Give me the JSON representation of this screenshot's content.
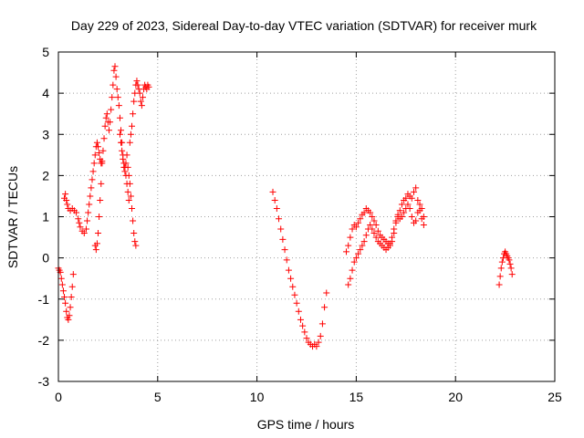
{
  "chart_data": {
    "type": "scatter",
    "title": "Day 229 of 2023, Sidereal Day-to-day VTEC variation (SDTVAR) for receiver murk",
    "xlabel": "GPS time / hours",
    "ylabel": "SDTVAR / TECUs",
    "xlim": [
      0,
      25
    ],
    "ylim": [
      -3,
      5
    ],
    "xticks": [
      0,
      5,
      10,
      15,
      20,
      25
    ],
    "yticks": [
      -3,
      -2,
      -1,
      0,
      1,
      2,
      3,
      4,
      5
    ],
    "grid": true,
    "marker": "+",
    "color": "#ff0000",
    "series": [
      {
        "name": "SDTVAR",
        "points": [
          [
            0.0,
            -0.25
          ],
          [
            0.05,
            -0.3
          ],
          [
            0.1,
            -0.35
          ],
          [
            0.15,
            -0.5
          ],
          [
            0.2,
            -0.65
          ],
          [
            0.25,
            -0.8
          ],
          [
            0.3,
            -0.95
          ],
          [
            0.35,
            -1.1
          ],
          [
            0.4,
            -1.3
          ],
          [
            0.45,
            -1.45
          ],
          [
            0.5,
            -1.5
          ],
          [
            0.55,
            -1.4
          ],
          [
            0.6,
            -1.2
          ],
          [
            0.65,
            -0.95
          ],
          [
            0.7,
            -0.7
          ],
          [
            0.75,
            -0.4
          ],
          [
            0.3,
            1.45
          ],
          [
            0.35,
            1.55
          ],
          [
            0.4,
            1.4
          ],
          [
            0.45,
            1.3
          ],
          [
            0.5,
            1.2
          ],
          [
            0.6,
            1.15
          ],
          [
            0.7,
            1.2
          ],
          [
            0.8,
            1.15
          ],
          [
            0.9,
            1.1
          ],
          [
            1.0,
            0.95
          ],
          [
            1.05,
            0.85
          ],
          [
            1.1,
            0.75
          ],
          [
            1.2,
            0.65
          ],
          [
            1.3,
            0.6
          ],
          [
            1.4,
            0.7
          ],
          [
            1.45,
            0.9
          ],
          [
            1.5,
            1.1
          ],
          [
            1.55,
            1.3
          ],
          [
            1.6,
            1.5
          ],
          [
            1.65,
            1.7
          ],
          [
            1.7,
            1.9
          ],
          [
            1.75,
            2.1
          ],
          [
            1.8,
            2.3
          ],
          [
            1.85,
            2.5
          ],
          [
            1.9,
            2.7
          ],
          [
            1.95,
            2.8
          ],
          [
            2.0,
            2.7
          ],
          [
            2.05,
            2.55
          ],
          [
            2.1,
            2.4
          ],
          [
            2.15,
            2.3
          ],
          [
            2.2,
            2.35
          ],
          [
            2.25,
            2.6
          ],
          [
            2.3,
            2.9
          ],
          [
            2.35,
            3.2
          ],
          [
            2.4,
            3.4
          ],
          [
            2.45,
            3.5
          ],
          [
            1.85,
            0.3
          ],
          [
            1.9,
            0.2
          ],
          [
            1.95,
            0.35
          ],
          [
            2.0,
            0.6
          ],
          [
            2.05,
            1.0
          ],
          [
            2.1,
            1.4
          ],
          [
            2.15,
            1.8
          ],
          [
            2.2,
            2.3
          ],
          [
            2.5,
            3.3
          ],
          [
            2.55,
            3.1
          ],
          [
            2.6,
            3.3
          ],
          [
            2.65,
            3.6
          ],
          [
            2.7,
            3.9
          ],
          [
            2.75,
            4.2
          ],
          [
            2.8,
            4.55
          ],
          [
            2.85,
            4.65
          ],
          [
            2.9,
            4.4
          ],
          [
            2.95,
            4.1
          ],
          [
            3.0,
            3.9
          ],
          [
            3.05,
            3.7
          ],
          [
            3.1,
            3.4
          ],
          [
            3.15,
            3.1
          ],
          [
            3.2,
            2.8
          ],
          [
            3.25,
            2.5
          ],
          [
            3.3,
            2.3
          ],
          [
            3.35,
            2.2
          ],
          [
            3.4,
            2.0
          ],
          [
            3.45,
            1.8
          ],
          [
            3.5,
            1.6
          ],
          [
            3.55,
            1.4
          ],
          [
            3.1,
            3.0
          ],
          [
            3.15,
            2.8
          ],
          [
            3.2,
            2.6
          ],
          [
            3.25,
            2.4
          ],
          [
            3.3,
            2.2
          ],
          [
            3.35,
            2.1
          ],
          [
            3.4,
            2.3
          ],
          [
            3.45,
            2.5
          ],
          [
            3.5,
            2.2
          ],
          [
            3.55,
            2.0
          ],
          [
            3.6,
            1.8
          ],
          [
            3.65,
            1.5
          ],
          [
            3.7,
            1.2
          ],
          [
            3.75,
            0.9
          ],
          [
            3.8,
            0.6
          ],
          [
            3.85,
            0.4
          ],
          [
            3.9,
            0.3
          ],
          [
            3.6,
            2.8
          ],
          [
            3.65,
            3.0
          ],
          [
            3.7,
            3.2
          ],
          [
            3.75,
            3.5
          ],
          [
            3.8,
            3.8
          ],
          [
            3.85,
            4.0
          ],
          [
            3.9,
            4.2
          ],
          [
            3.95,
            4.3
          ],
          [
            4.0,
            4.2
          ],
          [
            4.05,
            4.1
          ],
          [
            4.1,
            4.0
          ],
          [
            4.15,
            3.8
          ],
          [
            4.2,
            3.7
          ],
          [
            4.25,
            3.9
          ],
          [
            4.3,
            4.1
          ],
          [
            4.35,
            4.2
          ],
          [
            4.4,
            4.15
          ],
          [
            4.45,
            4.1
          ],
          [
            4.5,
            4.2
          ],
          [
            4.55,
            4.15
          ],
          [
            10.8,
            1.6
          ],
          [
            10.9,
            1.4
          ],
          [
            11.0,
            1.2
          ],
          [
            11.1,
            0.95
          ],
          [
            11.2,
            0.7
          ],
          [
            11.3,
            0.45
          ],
          [
            11.4,
            0.2
          ],
          [
            11.5,
            -0.05
          ],
          [
            11.6,
            -0.3
          ],
          [
            11.7,
            -0.5
          ],
          [
            11.8,
            -0.7
          ],
          [
            11.9,
            -0.9
          ],
          [
            12.0,
            -1.1
          ],
          [
            12.1,
            -1.3
          ],
          [
            12.2,
            -1.5
          ],
          [
            12.3,
            -1.65
          ],
          [
            12.4,
            -1.8
          ],
          [
            12.5,
            -1.95
          ],
          [
            12.6,
            -2.05
          ],
          [
            12.7,
            -2.1
          ],
          [
            12.8,
            -2.15
          ],
          [
            12.9,
            -2.1
          ],
          [
            13.0,
            -2.15
          ],
          [
            13.1,
            -2.05
          ],
          [
            13.2,
            -1.9
          ],
          [
            13.3,
            -1.6
          ],
          [
            13.4,
            -1.2
          ],
          [
            13.5,
            -0.85
          ],
          [
            14.5,
            0.15
          ],
          [
            14.6,
            0.3
          ],
          [
            14.7,
            0.5
          ],
          [
            14.8,
            0.7
          ],
          [
            14.9,
            0.8
          ],
          [
            15.0,
            0.75
          ],
          [
            15.1,
            0.85
          ],
          [
            15.2,
            0.95
          ],
          [
            15.3,
            1.05
          ],
          [
            15.4,
            1.1
          ],
          [
            15.5,
            1.2
          ],
          [
            15.6,
            1.15
          ],
          [
            15.7,
            1.1
          ],
          [
            15.8,
            1.0
          ],
          [
            15.9,
            0.9
          ],
          [
            16.0,
            0.8
          ],
          [
            16.1,
            0.65
          ],
          [
            16.2,
            0.55
          ],
          [
            16.3,
            0.5
          ],
          [
            16.4,
            0.45
          ],
          [
            16.5,
            0.4
          ],
          [
            16.6,
            0.35
          ],
          [
            16.7,
            0.3
          ],
          [
            16.8,
            0.4
          ],
          [
            16.9,
            0.6
          ],
          [
            17.0,
            0.85
          ],
          [
            17.1,
            1.05
          ],
          [
            17.2,
            1.15
          ],
          [
            17.3,
            1.3
          ],
          [
            17.4,
            1.4
          ],
          [
            17.5,
            1.45
          ],
          [
            17.6,
            1.55
          ],
          [
            17.7,
            1.5
          ],
          [
            17.8,
            1.45
          ],
          [
            17.9,
            1.6
          ],
          [
            18.0,
            1.7
          ],
          [
            18.1,
            1.4
          ],
          [
            18.2,
            1.15
          ],
          [
            18.3,
            0.95
          ],
          [
            18.4,
            0.8
          ],
          [
            14.6,
            -0.65
          ],
          [
            14.7,
            -0.5
          ],
          [
            14.8,
            -0.3
          ],
          [
            14.9,
            -0.1
          ],
          [
            15.0,
            0.0
          ],
          [
            15.1,
            0.1
          ],
          [
            15.2,
            0.2
          ],
          [
            15.3,
            0.3
          ],
          [
            15.4,
            0.4
          ],
          [
            15.5,
            0.55
          ],
          [
            15.6,
            0.7
          ],
          [
            15.7,
            0.8
          ],
          [
            15.8,
            0.7
          ],
          [
            15.9,
            0.6
          ],
          [
            16.0,
            0.5
          ],
          [
            16.1,
            0.4
          ],
          [
            16.2,
            0.35
          ],
          [
            16.3,
            0.3
          ],
          [
            16.4,
            0.25
          ],
          [
            16.5,
            0.2
          ],
          [
            16.6,
            0.25
          ],
          [
            16.7,
            0.35
          ],
          [
            16.8,
            0.5
          ],
          [
            16.9,
            0.7
          ],
          [
            17.0,
            0.9
          ],
          [
            17.1,
            1.0
          ],
          [
            17.2,
            0.95
          ],
          [
            17.3,
            1.0
          ],
          [
            17.4,
            1.1
          ],
          [
            17.5,
            1.2
          ],
          [
            17.6,
            1.3
          ],
          [
            17.7,
            1.2
          ],
          [
            17.8,
            1.0
          ],
          [
            17.9,
            0.85
          ],
          [
            18.0,
            0.9
          ],
          [
            18.1,
            1.1
          ],
          [
            18.2,
            1.3
          ],
          [
            18.3,
            1.2
          ],
          [
            18.4,
            1.0
          ],
          [
            22.2,
            -0.65
          ],
          [
            22.25,
            -0.45
          ],
          [
            22.3,
            -0.25
          ],
          [
            22.35,
            -0.1
          ],
          [
            22.4,
            0.0
          ],
          [
            22.45,
            0.1
          ],
          [
            22.5,
            0.15
          ],
          [
            22.55,
            0.1
          ],
          [
            22.6,
            0.05
          ],
          [
            22.65,
            0.0
          ],
          [
            22.7,
            -0.05
          ],
          [
            22.75,
            -0.15
          ],
          [
            22.8,
            -0.25
          ],
          [
            22.85,
            -0.4
          ]
        ]
      }
    ]
  }
}
